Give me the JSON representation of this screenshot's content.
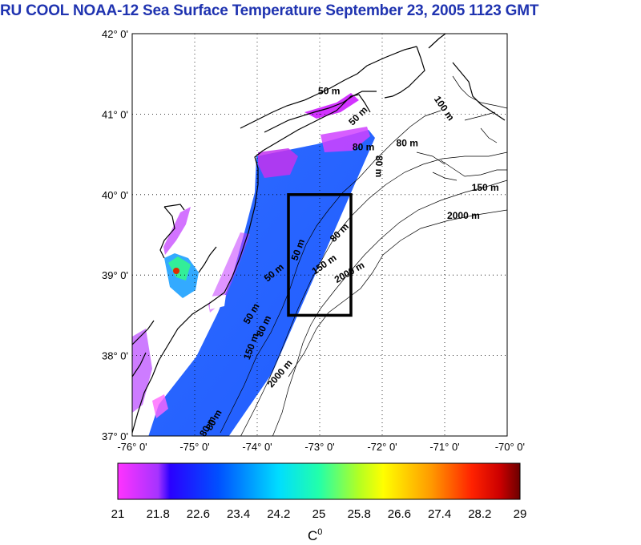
{
  "title": "RU COOL  NOAA-12 Sea Surface Temperature September 23, 2005 1123 GMT",
  "map": {
    "lon_range": [
      -76,
      -70
    ],
    "lat_range": [
      37,
      42
    ],
    "lon_ticks": [
      "-76° 0'",
      "-75° 0'",
      "-74° 0'",
      "-73° 0'",
      "-72° 0'",
      "-71° 0'",
      "-70° 0'"
    ],
    "lat_ticks": [
      "42° 0'",
      "41° 0'",
      "40° 0'",
      "39° 0'",
      "38° 0'",
      "37° 0'"
    ],
    "grid": "dotted",
    "study_box": {
      "lon": [
        -73.5,
        -72.5
      ],
      "lat": [
        38.5,
        40.0
      ]
    },
    "contour_labels": [
      {
        "text": "50 m",
        "lon": -72.85,
        "lat": 41.25,
        "angle": 0
      },
      {
        "text": "50 m",
        "lon": -72.35,
        "lat": 40.95,
        "angle": -45
      },
      {
        "text": "80 m",
        "lon": -72.3,
        "lat": 40.55,
        "angle": 0
      },
      {
        "text": "80 m",
        "lon": -71.6,
        "lat": 40.6,
        "angle": 0
      },
      {
        "text": "80 m",
        "lon": -72.1,
        "lat": 40.35,
        "angle": 90
      },
      {
        "text": "100 m",
        "lon": -71.05,
        "lat": 41.05,
        "angle": 55
      },
      {
        "text": "150 m",
        "lon": -70.35,
        "lat": 40.05,
        "angle": 0
      },
      {
        "text": "2000 m",
        "lon": -70.7,
        "lat": 39.7,
        "angle": 0
      },
      {
        "text": "2000 m",
        "lon": -72.5,
        "lat": 39.0,
        "angle": -30
      },
      {
        "text": "2000 m",
        "lon": -73.6,
        "lat": 37.75,
        "angle": -50
      },
      {
        "text": "150 m",
        "lon": -72.9,
        "lat": 39.1,
        "angle": -35
      },
      {
        "text": "80 m",
        "lon": -72.65,
        "lat": 39.5,
        "angle": -45
      },
      {
        "text": "50 m",
        "lon": -73.3,
        "lat": 39.3,
        "angle": -70
      },
      {
        "text": "50 m",
        "lon": -73.7,
        "lat": 39.0,
        "angle": -40
      },
      {
        "text": "50 m",
        "lon": -74.05,
        "lat": 38.5,
        "angle": -60
      },
      {
        "text": "80 m",
        "lon": -73.85,
        "lat": 38.35,
        "angle": -65
      },
      {
        "text": "150 m",
        "lon": -74.05,
        "lat": 38.1,
        "angle": -70
      },
      {
        "text": "80 m",
        "lon": -74.65,
        "lat": 37.18,
        "angle": -60
      },
      {
        "text": "80 m",
        "lon": -74.75,
        "lat": 37.1,
        "angle": -60
      }
    ]
  },
  "colorbar": {
    "ticks": [
      "21",
      "21.8",
      "22.6",
      "23.4",
      "24.2",
      "25",
      "25.8",
      "26.6",
      "27.4",
      "28.2",
      "29"
    ],
    "unit": "C",
    "unit_superscript": "0",
    "colors": [
      "#ff33ff",
      "#3300ff",
      "#0044ff",
      "#0099ff",
      "#00ffff",
      "#33ff99",
      "#99ff33",
      "#ffff00",
      "#ffaa00",
      "#ff3300",
      "#cc0000",
      "#660000"
    ]
  }
}
